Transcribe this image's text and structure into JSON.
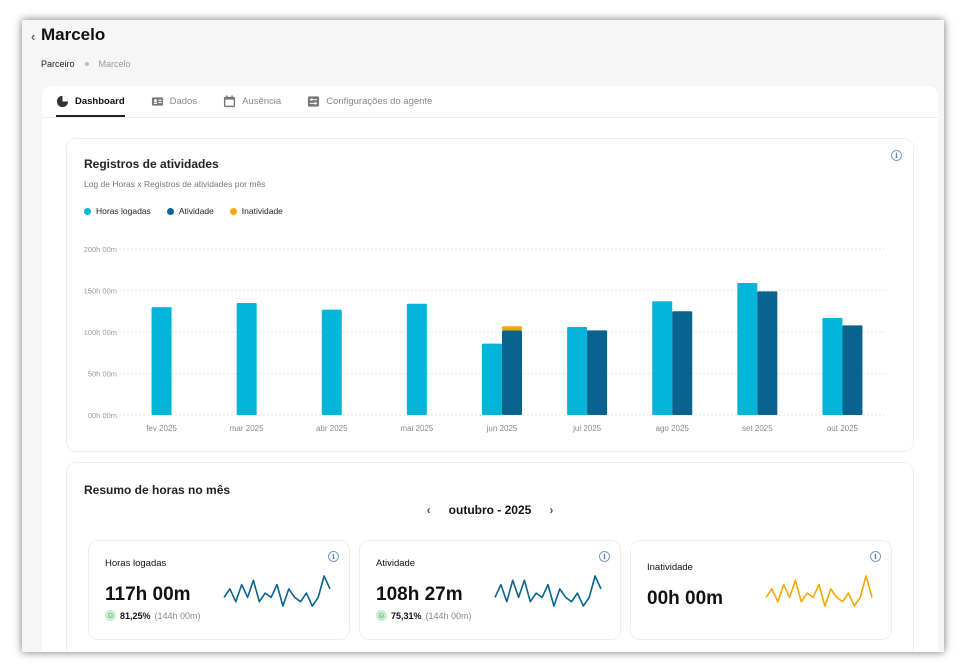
{
  "header": {
    "back_glyph": "‹",
    "title": "Marcelo"
  },
  "breadcrumb": {
    "parent": "Parceiro",
    "current": "Marcelo"
  },
  "tabs": [
    {
      "label": "Dashboard",
      "icon": "pie-chart-icon",
      "active": true
    },
    {
      "label": "Dados",
      "icon": "id-card-icon",
      "active": false
    },
    {
      "label": "Ausência",
      "icon": "calendar-icon",
      "active": false
    },
    {
      "label": "Configurações do agente",
      "icon": "settings-sliders-icon",
      "active": false
    }
  ],
  "activity_card": {
    "title": "Registros de atividades",
    "subtitle": "Log de Horas x Registros de atividades por mês",
    "info_icon": "i"
  },
  "chart_data": {
    "type": "bar",
    "title": "Registros de atividades",
    "categories": [
      "fev 2025",
      "mar 2025",
      "abr 2025",
      "mai 2025",
      "jun 2025",
      "jul 2025",
      "ago 2025",
      "set 2025",
      "out 2025"
    ],
    "series": [
      {
        "name": "Horas logadas",
        "color": "#04b5d9",
        "values": [
          130,
          135,
          127,
          134,
          86,
          106,
          137,
          159,
          117
        ]
      },
      {
        "name": "Atividade",
        "color": "#08638f",
        "values": [
          null,
          null,
          null,
          null,
          102,
          102,
          125,
          149,
          108
        ]
      },
      {
        "name": "Inatividade",
        "color": "#f2a900",
        "values": [
          null,
          null,
          null,
          null,
          5,
          0,
          0,
          0,
          0
        ]
      }
    ],
    "y_ticks": [
      "00h 00m",
      "50h 00m",
      "100h 00m",
      "150h 00m",
      "200h 00m"
    ],
    "ylim": [
      0,
      200
    ],
    "grid": true,
    "legend": "top-left",
    "stacked_series": [
      "Atividade",
      "Inatividade"
    ]
  },
  "summary": {
    "title": "Resumo de horas no mês",
    "month_label": "outubro - 2025",
    "prev_glyph": "‹",
    "next_glyph": "›",
    "stats": [
      {
        "label": "Horas logadas",
        "value": "117h 00m",
        "pct": "81,25%",
        "ref": "(144h 00m)",
        "color": "#08638f",
        "spark": [
          3,
          5,
          2,
          6,
          3,
          7,
          2,
          4,
          3,
          6,
          1,
          5,
          3,
          2,
          4,
          1,
          3,
          8,
          5
        ]
      },
      {
        "label": "Atividade",
        "value": "108h 27m",
        "pct": "75,31%",
        "ref": "(144h 00m)",
        "color": "#08638f",
        "spark": [
          3,
          6,
          2,
          7,
          3,
          7,
          2,
          4,
          3,
          6,
          1,
          5,
          3,
          2,
          4,
          1,
          3,
          8,
          5
        ]
      },
      {
        "label": "Inatividade",
        "value": "00h 00m",
        "pct": "",
        "ref": "",
        "color": "#f2a900",
        "spark": [
          3,
          5,
          2,
          6,
          3,
          7,
          2,
          4,
          3,
          6,
          1,
          5,
          3,
          2,
          4,
          1,
          3,
          8,
          3
        ]
      }
    ]
  }
}
